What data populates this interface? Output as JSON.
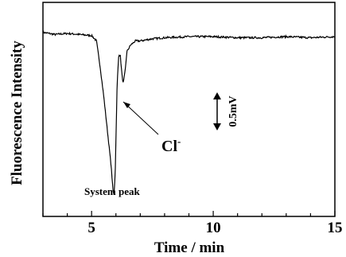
{
  "chart_data": {
    "type": "line",
    "title": "",
    "xlabel": "Time / min",
    "ylabel": "Fluorescence Intensity",
    "xlim": [
      3,
      15
    ],
    "ylim": [
      0,
      1
    ],
    "xticks": [
      5,
      10,
      15
    ],
    "xtick_labels": [
      "5",
      "10",
      "15"
    ],
    "grid": false,
    "series": [
      {
        "x": [
          3.0,
          3.5,
          4.0,
          4.5,
          5.0,
          5.2,
          5.35,
          5.5,
          5.65,
          5.8,
          5.88,
          5.92,
          5.97,
          6.05,
          6.12,
          6.18,
          6.25,
          6.3,
          6.38,
          6.45,
          6.6,
          6.8,
          7.0,
          7.5,
          8.0,
          9.0,
          10.0,
          11.0,
          12.0,
          13.0,
          14.0,
          15.0
        ],
        "y": [
          0.86,
          0.85,
          0.855,
          0.85,
          0.845,
          0.82,
          0.7,
          0.56,
          0.4,
          0.24,
          0.12,
          0.1,
          0.2,
          0.62,
          0.76,
          0.75,
          0.66,
          0.62,
          0.68,
          0.77,
          0.8,
          0.82,
          0.82,
          0.83,
          0.835,
          0.84,
          0.84,
          0.835,
          0.835,
          0.84,
          0.835,
          0.84
        ]
      }
    ],
    "annotations": {
      "chloride": "Cl",
      "chloride_superscript": "-",
      "system_peak": "System peak",
      "scale_bar": "0.5mV"
    }
  }
}
